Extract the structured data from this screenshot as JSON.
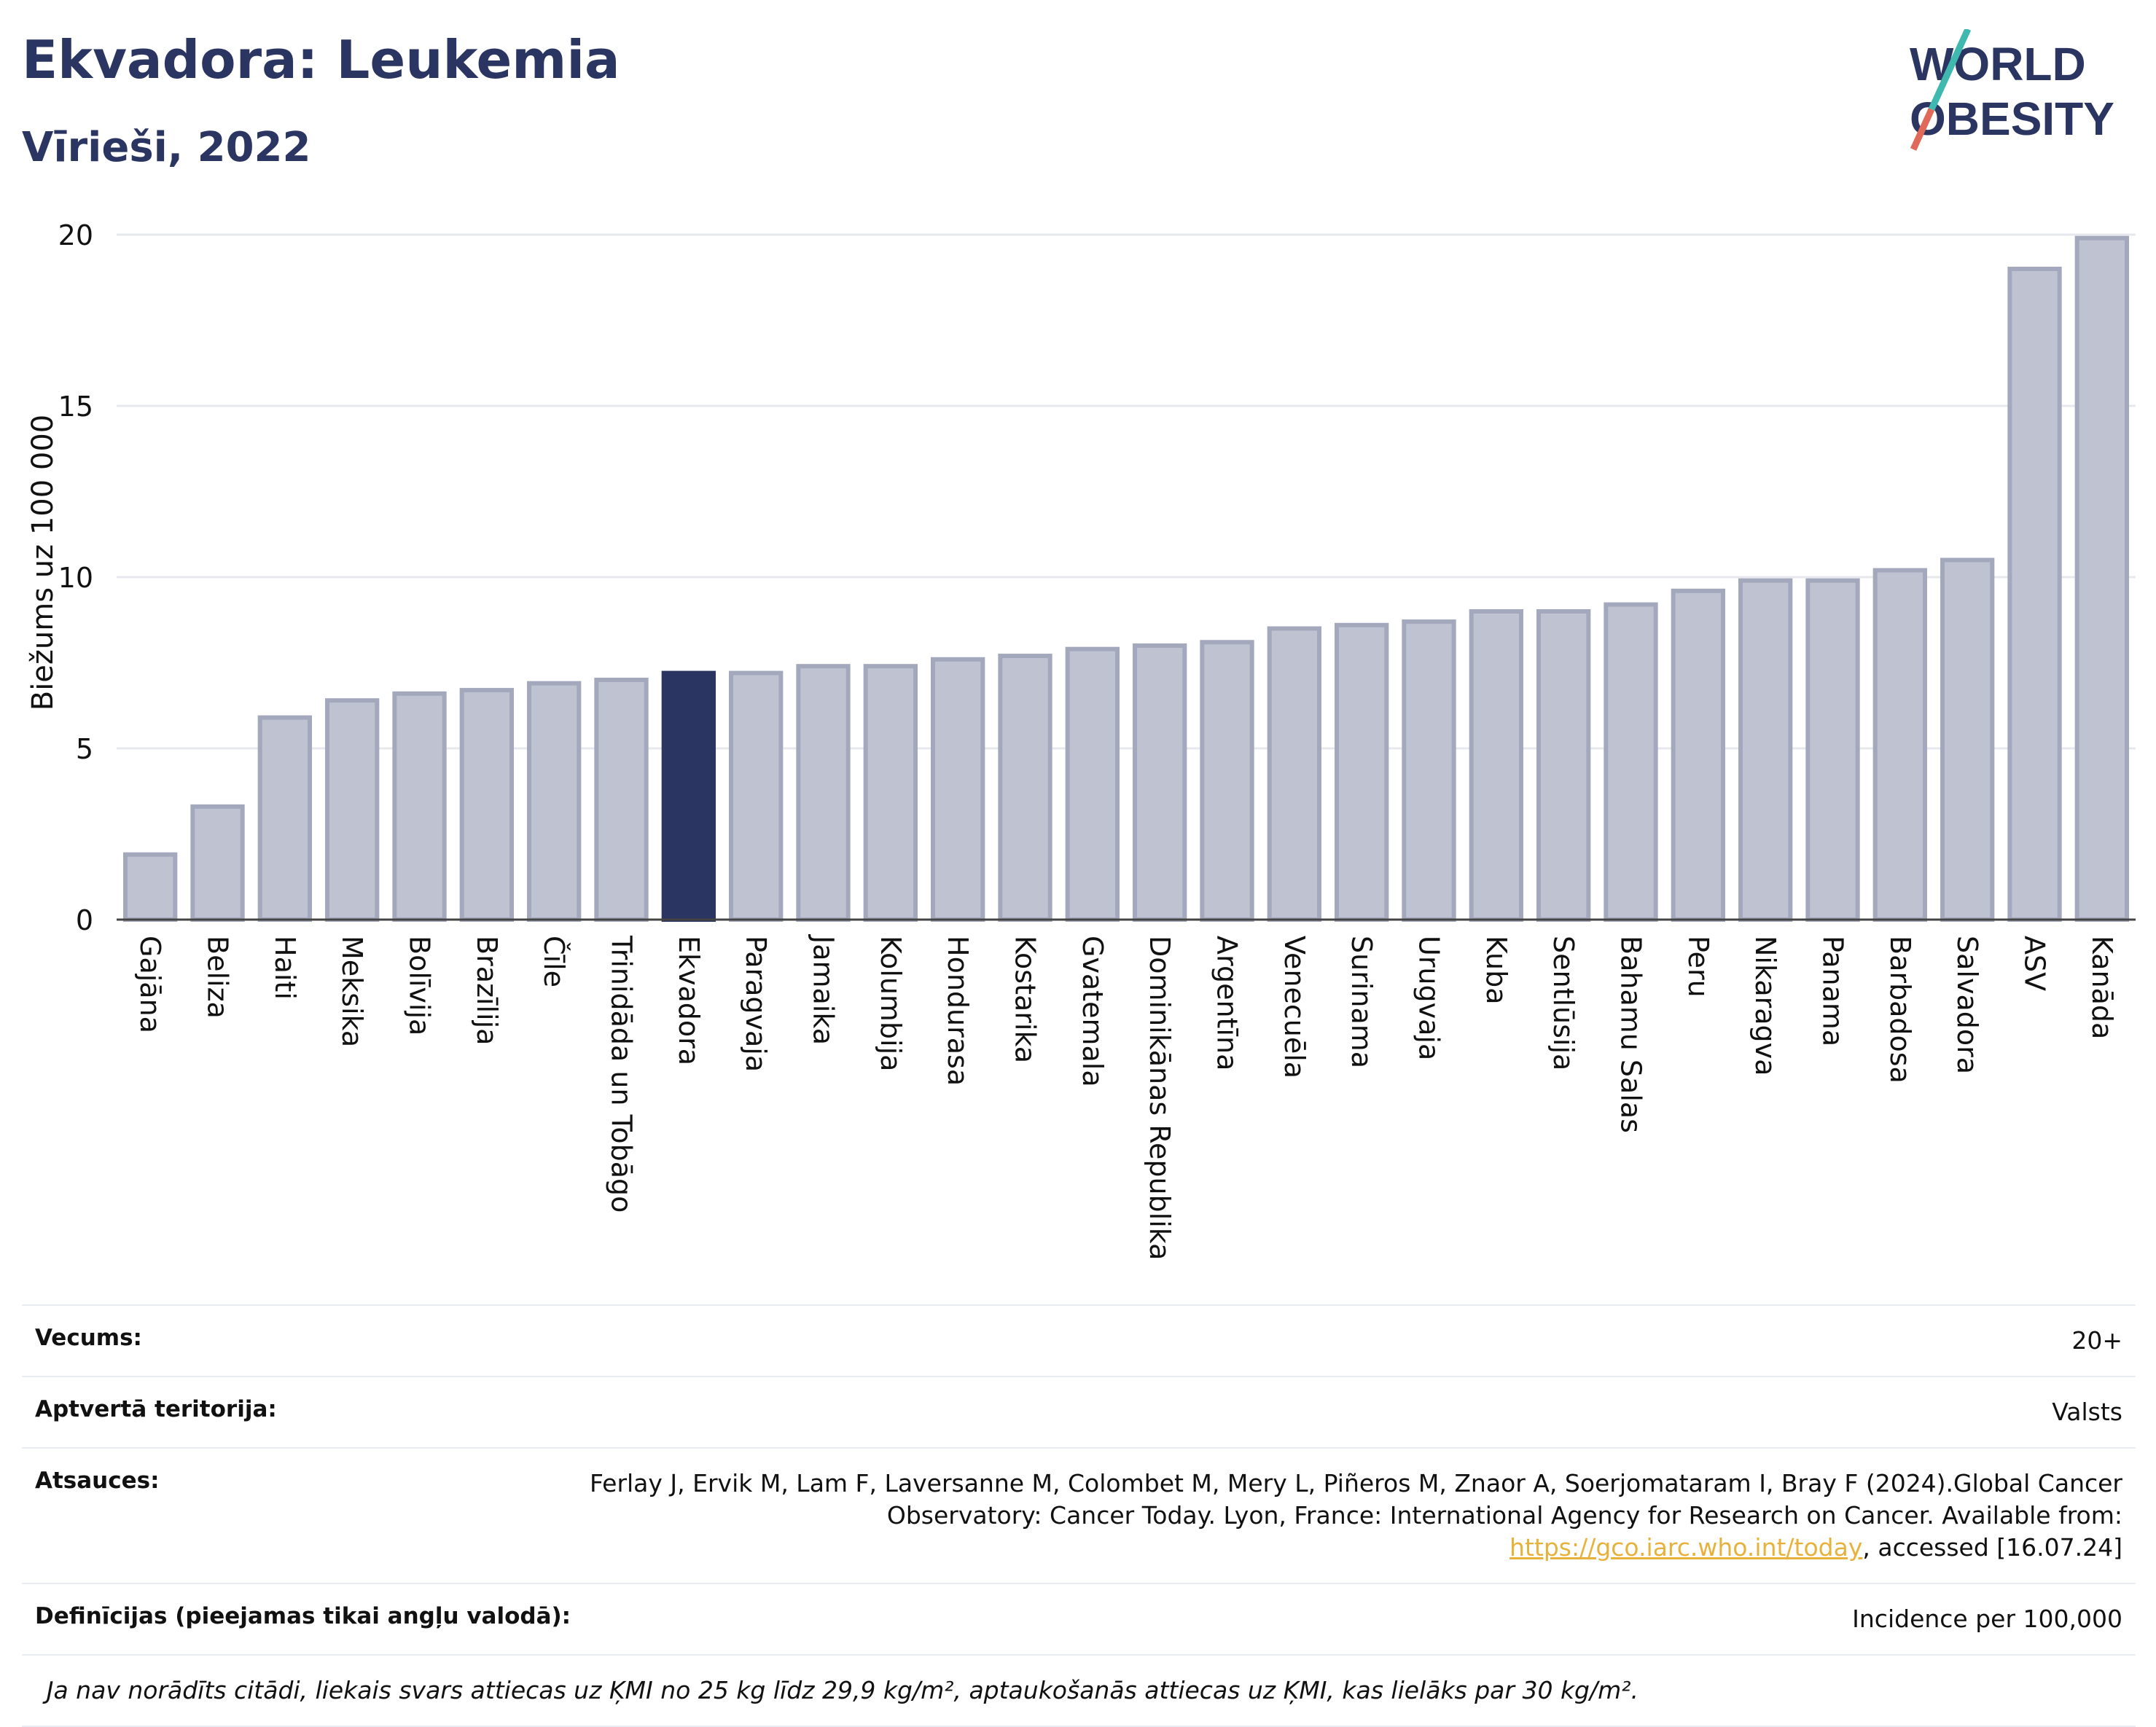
{
  "header": {
    "title": "Ekvadora: Leukemia",
    "subtitle": "Vīrieši, 2022"
  },
  "logo": {
    "line1": "WORLD",
    "line2": "OBESITY"
  },
  "chart_data": {
    "type": "bar",
    "title": "Ekvadora: Leukemia",
    "subtitle": "Vīrieši, 2022",
    "xlabel": "",
    "ylabel": "Biežums uz 100 000",
    "ylim": [
      0,
      20
    ],
    "yticks": [
      0,
      5,
      10,
      15,
      20
    ],
    "grid": true,
    "highlight": "Ekvadora",
    "colors": {
      "bar": "#bfc3d1",
      "bar_edge": "#a3a8bd",
      "highlight": "#2b3561"
    },
    "categories": [
      "Gajāna",
      "Beliza",
      "Haiti",
      "Meksika",
      "Bolīvija",
      "Brazīlija",
      "Čīle",
      "Trinidāda un Tobāgo",
      "Ekvadora",
      "Paragvaja",
      "Jamaika",
      "Kolumbija",
      "Hondurasa",
      "Kostarika",
      "Gvatemala",
      "Dominikānas Republika",
      "Argentīna",
      "Venecuēla",
      "Surinama",
      "Urugvaja",
      "Kuba",
      "Sentlūsija",
      "Bahamu Salas",
      "Peru",
      "Nikaragva",
      "Panama",
      "Barbadosa",
      "Salvadora",
      "ASV",
      "Kanāda"
    ],
    "values": [
      1.9,
      3.3,
      5.9,
      6.4,
      6.6,
      6.7,
      6.9,
      7.0,
      7.2,
      7.2,
      7.4,
      7.4,
      7.6,
      7.7,
      7.9,
      8.0,
      8.1,
      8.5,
      8.6,
      8.7,
      9.0,
      9.0,
      9.2,
      9.6,
      9.9,
      9.9,
      10.2,
      10.5,
      19.0,
      19.9
    ]
  },
  "meta": {
    "age_label": "Vecums:",
    "age_value": "20+",
    "coverage_label": "Aptvertā teritorija:",
    "coverage_value": "Valsts",
    "refs_label": "Atsauces:",
    "refs_text": "Ferlay J, Ervik M, Lam F, Laversanne M, Colombet M, Mery L, Piñeros M, Znaor A, Soerjomataram I, Bray F (2024).Global Cancer Observatory: Cancer Today. Lyon, France: International Agency for Research on Cancer. Available from:",
    "refs_link": "https://gco.iarc.who.int/today",
    "refs_after": ", accessed [16.07.24]",
    "defs_label": "Definīcijas (pieejamas tikai angļu valodā):",
    "defs_value": "Incidence per 100,000",
    "note": "Ja nav norādīts citādi, liekais svars attiecas uz ĶMI no 25 kg līdz 29,9 kg/m², aptaukošanās attiecas uz ĶMI, kas lielāks par 30 kg/m²."
  }
}
